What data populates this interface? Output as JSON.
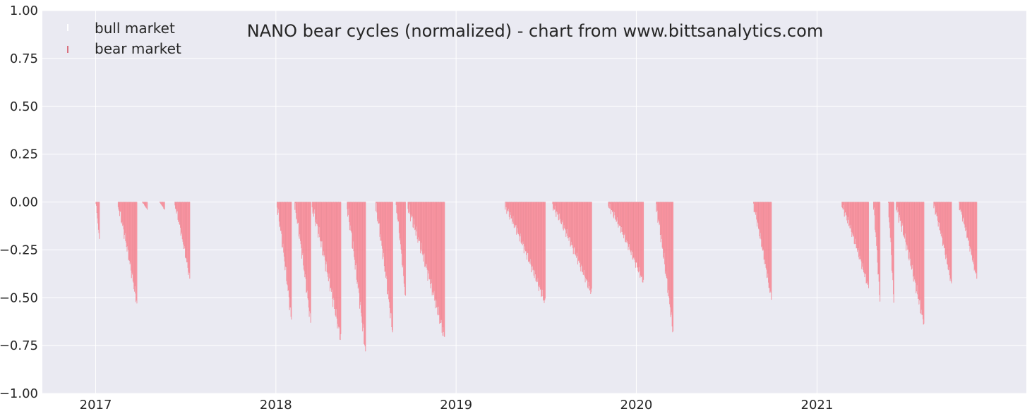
{
  "colors": {
    "plot_background": "#eaeaf2",
    "grid": "#ffffff",
    "bear_fill": "#ff9aa6",
    "bear_edge": "#d9707e",
    "bull_color": "#ffffff"
  },
  "chart_data": {
    "type": "bar",
    "title": "NANO bear cycles (normalized)  - chart from www.bittsanalytics.com",
    "xlabel": "",
    "ylabel": "",
    "ylim": [
      -1.0,
      1.0
    ],
    "y_ticks": [
      1.0,
      0.75,
      0.5,
      0.25,
      0.0,
      -0.25,
      -0.5,
      -0.75,
      -1.0
    ],
    "y_tick_labels": [
      "1.00",
      "0.75",
      "0.50",
      "0.25",
      "0.00",
      "−0.25",
      "−0.50",
      "−0.75",
      "−1.00"
    ],
    "x_axis_type": "date",
    "xlim": [
      "2016-09-15",
      "2022-03-01"
    ],
    "x_ticks": [
      "2017-01-01",
      "2018-01-01",
      "2019-01-01",
      "2020-01-01",
      "2021-01-01"
    ],
    "x_tick_labels": [
      "2017",
      "2018",
      "2019",
      "2020",
      "2021"
    ],
    "grid": true,
    "legend_position": "top-left",
    "legend": [
      "bull market",
      "bear market"
    ],
    "series": [
      {
        "name": "bear market",
        "description_note": "drawdown episodes; each segment shown as daily negative bars",
        "episodes": [
          {
            "start": "2017-01-01",
            "end": "2017-01-08",
            "min": -0.2
          },
          {
            "start": "2017-02-15",
            "end": "2017-03-25",
            "min": -0.53
          },
          {
            "start": "2017-04-05",
            "end": "2017-04-15",
            "min": -0.04
          },
          {
            "start": "2017-05-10",
            "end": "2017-05-20",
            "min": -0.04
          },
          {
            "start": "2017-06-10",
            "end": "2017-07-10",
            "min": -0.4
          },
          {
            "start": "2018-01-03",
            "end": "2018-02-01",
            "min": -0.62
          },
          {
            "start": "2018-02-08",
            "end": "2018-03-12",
            "min": -0.63
          },
          {
            "start": "2018-03-15",
            "end": "2018-05-12",
            "min": -0.72
          },
          {
            "start": "2018-05-25",
            "end": "2018-07-01",
            "min": -0.78
          },
          {
            "start": "2018-07-22",
            "end": "2018-08-25",
            "min": -0.68
          },
          {
            "start": "2018-09-01",
            "end": "2018-09-20",
            "min": -0.5
          },
          {
            "start": "2018-09-25",
            "end": "2018-12-08",
            "min": -0.71
          },
          {
            "start": "2019-04-10",
            "end": "2019-06-30",
            "min": -0.53
          },
          {
            "start": "2019-07-15",
            "end": "2019-10-02",
            "min": -0.48
          },
          {
            "start": "2019-11-05",
            "end": "2020-01-15",
            "min": -0.42
          },
          {
            "start": "2020-02-10",
            "end": "2020-03-15",
            "min": -0.68
          },
          {
            "start": "2020-08-25",
            "end": "2020-09-30",
            "min": -0.51
          },
          {
            "start": "2021-02-20",
            "end": "2021-04-15",
            "min": -0.45
          },
          {
            "start": "2021-04-25",
            "end": "2021-05-08",
            "min": -0.52
          },
          {
            "start": "2021-05-25",
            "end": "2021-06-05",
            "min": -0.53
          },
          {
            "start": "2021-06-10",
            "end": "2021-08-05",
            "min": -0.64
          },
          {
            "start": "2021-08-25",
            "end": "2021-09-30",
            "min": -0.43
          },
          {
            "start": "2021-10-15",
            "end": "2021-11-20",
            "min": -0.4
          }
        ]
      }
    ]
  }
}
